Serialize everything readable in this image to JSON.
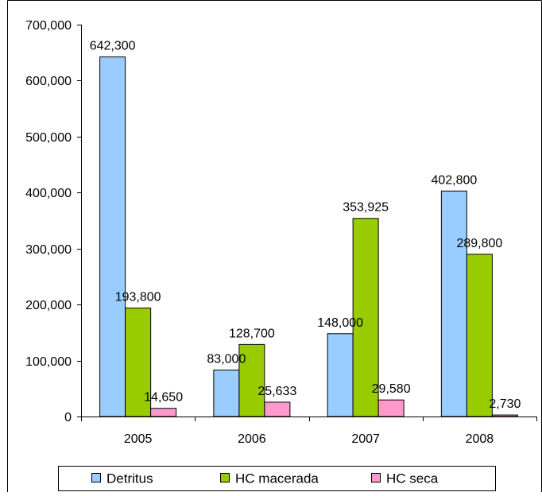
{
  "chart_data": {
    "type": "bar",
    "title": "",
    "xlabel": "",
    "ylabel": "",
    "categories": [
      "2005",
      "2006",
      "2007",
      "2008"
    ],
    "series": [
      {
        "name": "Detritus",
        "color": "#99CCFF",
        "values": [
          642300,
          83000,
          148000,
          402800
        ],
        "labels": [
          "642,300",
          "83,000",
          "148,000",
          "402,800"
        ]
      },
      {
        "name": "HC macerada",
        "color": "#99CC00",
        "values": [
          193800,
          128700,
          353925,
          289800
        ],
        "labels": [
          "193,800",
          "128,700",
          "353,925",
          "289,800"
        ]
      },
      {
        "name": "HC seca",
        "color": "#FF99CC",
        "values": [
          14650,
          25633,
          29580,
          2730
        ],
        "labels": [
          "14,650",
          "25,633",
          "29,580",
          "2,730"
        ]
      }
    ],
    "ylim": [
      0,
      700000
    ],
    "yticks": [
      0,
      100000,
      200000,
      300000,
      400000,
      500000,
      600000,
      700000
    ],
    "ytick_labels": [
      "0",
      "100,000",
      "200,000",
      "300,000",
      "400,000",
      "500,000",
      "600,000",
      "700,000"
    ],
    "grid": false,
    "legend_position": "bottom"
  }
}
